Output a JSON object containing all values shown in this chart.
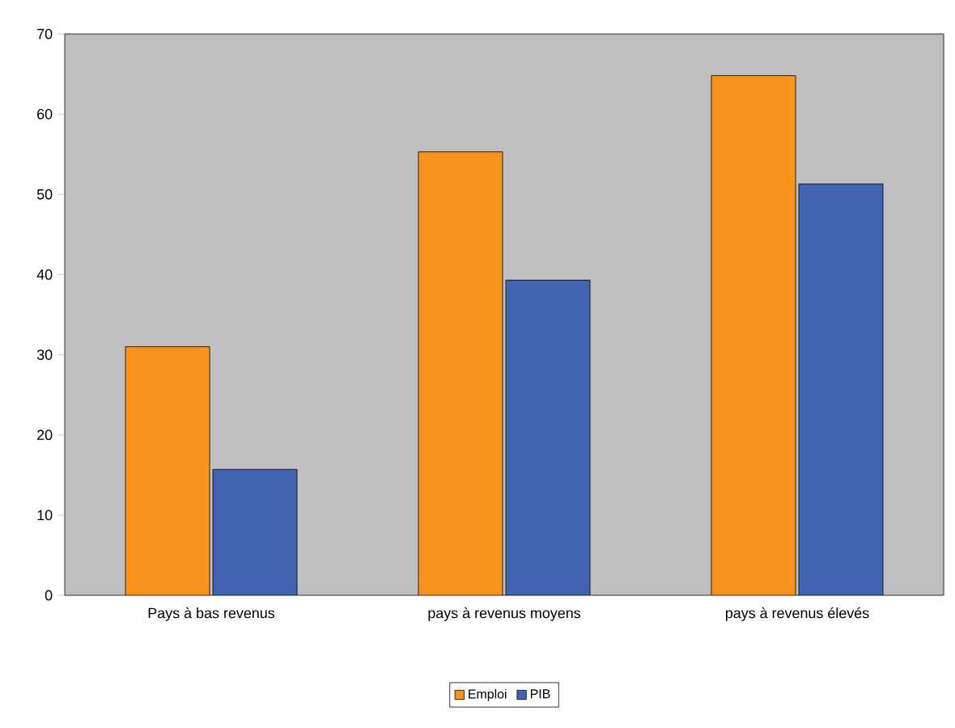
{
  "chart_data": {
    "type": "bar",
    "categories": [
      "Pays à bas revenus",
      "pays à revenus moyens",
      "pays à revenus élevés"
    ],
    "series": [
      {
        "name": "Emploi",
        "color": "#f7941d",
        "values": [
          31,
          55.3,
          64.8
        ]
      },
      {
        "name": "PIB",
        "color": "#4264b0",
        "values": [
          15.7,
          39.3,
          51.3
        ]
      }
    ],
    "ylim": [
      0,
      70
    ],
    "yticks": [
      0,
      10,
      20,
      30,
      40,
      50,
      60,
      70
    ],
    "grid": false,
    "legend": "bottom"
  }
}
